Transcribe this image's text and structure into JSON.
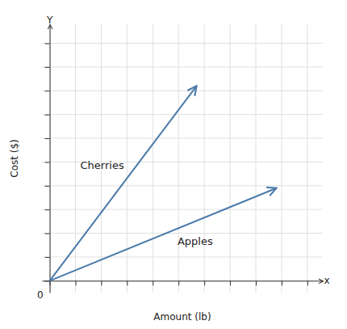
{
  "chart_data": {
    "type": "line",
    "xlabel": "Amount (lb)",
    "ylabel": "Cost ($)",
    "series": [
      {
        "name": "Cherries",
        "color": "#4a7aaa",
        "marker": "arrow",
        "x": [
          0,
          5.7
        ],
        "values": [
          0,
          8.2
        ]
      },
      {
        "name": "Apples",
        "color": "#4a7aaa",
        "marker": "arrow",
        "x": [
          0,
          8.8
        ],
        "values": [
          0,
          3.9
        ]
      }
    ],
    "xlim": [
      -0.3,
      10.6
    ],
    "ylim": [
      -0.5,
      10.8
    ],
    "xticks": [
      0,
      1,
      2,
      3,
      4,
      5,
      6,
      7,
      8,
      9,
      10
    ],
    "yticks": [
      0,
      1,
      2,
      3,
      4,
      5,
      6,
      7,
      8,
      9,
      10
    ],
    "grid": true,
    "tick_labels": false,
    "annotations": [
      {
        "text": "x",
        "x": 10.65,
        "y": 0
      },
      {
        "text": "Y",
        "x": 0,
        "y": 10.85
      },
      {
        "text": "0",
        "x": -0.25,
        "y": -0.45
      }
    ]
  }
}
